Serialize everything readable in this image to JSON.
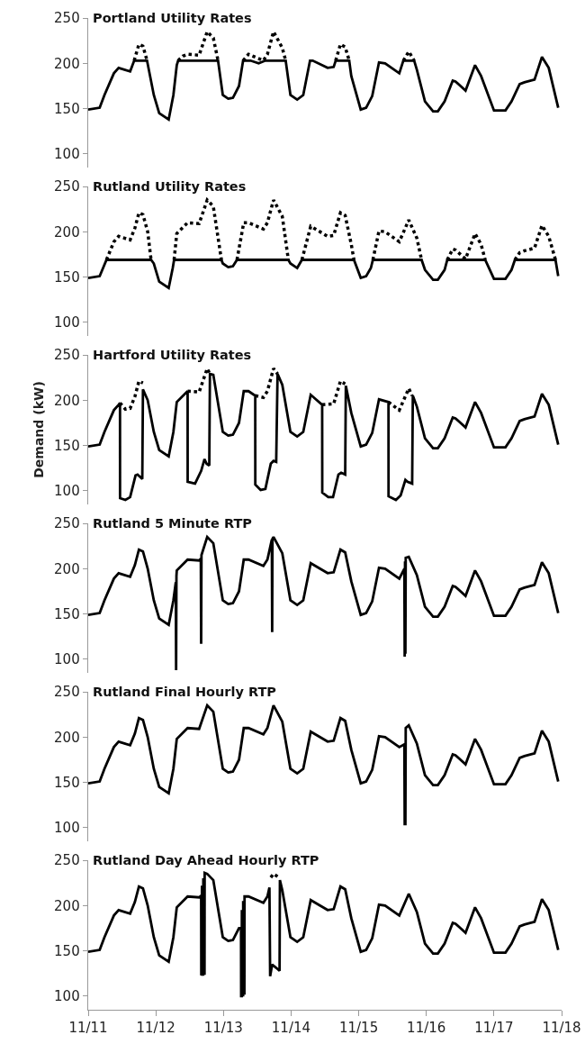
{
  "chart_data": [
    {
      "type": "line",
      "title": "Portland Utility Rates",
      "xlim": [
        "--11-11",
        "--11-18"
      ],
      "ylim": [
        85,
        250
      ],
      "yticks": [
        100,
        150,
        200,
        250
      ],
      "xticks": [
        {
          "value": "--11-11",
          "label": "11/11"
        },
        {
          "value": "--11-12",
          "label": "11/12"
        },
        {
          "value": "--11-13",
          "label": "11/13"
        },
        {
          "value": "--11-14",
          "label": "11/14"
        },
        {
          "value": "--11-15",
          "label": "11/15"
        },
        {
          "value": "--11-16",
          "label": "11/16"
        },
        {
          "value": "--11-17",
          "label": "11/17"
        },
        {
          "value": "--11-18",
          "label": "11/18"
        }
      ],
      "tick_labels": "y",
      "series": [
        {
          "color": "#000000",
          "line_style": "dotted",
          "x": [
            "--11-11T16:19",
            "--11-11T18:00",
            "--11-11T19:26",
            "--11-11T20:53",
            "--11-12T02:24",
            "--11-12T07:55",
            "--11-12T09:36",
            "--11-12T11:17",
            "--11-12T15:22",
            "--11-12T18:14",
            "--11-12T20:24",
            "--11-12T22:05",
            "--11-13T02:24",
            "--11-13T06:58",
            "--11-13T08:53",
            "--11-13T14:10",
            "--11-13T15:36",
            "--11-13T17:46",
            "--11-13T20:53",
            "--11-13T22:05",
            "--11-14T04:48",
            "--11-14T15:50",
            "--11-14T17:31",
            "--11-14T19:12",
            "--11-14T20:38",
            "--11-15T12:00",
            "--11-15T15:50",
            "--11-15T17:46",
            "--11-15T19:41"
          ],
          "values": [
            203,
            221,
            219,
            203,
            null,
            203,
            208,
            210,
            209,
            235,
            228,
            203,
            null,
            203,
            210,
            203,
            210,
            235,
            217,
            203,
            null,
            203,
            221,
            218,
            203,
            null,
            203,
            213,
            203
          ]
        },
        {
          "color": "#000000",
          "line_style": "solid",
          "x": [
            "--11-11T00:00",
            "--11-11T04:05",
            "--11-11T05:46",
            "--11-11T09:07",
            "--11-11T10:48",
            "--11-11T14:53",
            "--11-11T16:19",
            "--11-11T20:53",
            "--11-11T23:17",
            "--11-12T01:12",
            "--11-12T04:34",
            "--11-12T06:14",
            "--11-12T07:26",
            "--11-12T07:55",
            "--11-12T22:05",
            "--11-12T23:46",
            "--11-13T01:41",
            "--11-13T03:22",
            "--11-13T05:31",
            "--11-13T06:58",
            "--11-13T09:36",
            "--11-13T12:29",
            "--11-13T14:53",
            "--11-13T22:05",
            "--11-13T23:46",
            "--11-14T02:10",
            "--11-14T04:19",
            "--11-14T06:43",
            "--11-14T07:41",
            "--11-14T12:58",
            "--11-14T15:07",
            "--11-14T15:50",
            "--11-14T20:38",
            "--11-14T21:22",
            "--11-15T00:43",
            "--11-15T02:38",
            "--11-15T04:48",
            "--11-15T07:12",
            "--11-15T09:22",
            "--11-15T14:24",
            "--11-15T15:50",
            "--11-15T19:41",
            "--11-15T20:38",
            "--11-15T23:31",
            "--11-16T02:24",
            "--11-16T04:05",
            "--11-16T06:29",
            "--11-16T09:22",
            "--11-16T10:19",
            "--11-16T13:55",
            "--11-16T17:17",
            "--11-16T19:26",
            "--11-17T00:00",
            "--11-17T04:05",
            "--11-17T06:14",
            "--11-17T09:07",
            "--11-17T10:48",
            "--11-17T14:24",
            "--11-17T17:02",
            "--11-17T19:26",
            "--11-17T22:48"
          ],
          "values": [
            149,
            151,
            165,
            189,
            195,
            191,
            203,
            203,
            165,
            145,
            138,
            165,
            198,
            203,
            203,
            165,
            161,
            162,
            175,
            203,
            203,
            200,
            203,
            203,
            165,
            160,
            165,
            203,
            203,
            195,
            196,
            203,
            203,
            186,
            149,
            151,
            164,
            201,
            200,
            189,
            203,
            203,
            193,
            158,
            147,
            147,
            158,
            181,
            180,
            170,
            198,
            186,
            148,
            148,
            158,
            177,
            179,
            182,
            207,
            195,
            151
          ]
        }
      ]
    },
    {
      "type": "line",
      "title": "Rutland Utility Rates",
      "xlim": [
        "--11-11",
        "--11-18"
      ],
      "ylim": [
        85,
        250
      ],
      "yticks": [
        100,
        150,
        200,
        250
      ],
      "xticks": [
        {
          "value": "--11-11",
          "label": "11/11"
        },
        {
          "value": "--11-12",
          "label": "11/12"
        },
        {
          "value": "--11-13",
          "label": "11/13"
        },
        {
          "value": "--11-14",
          "label": "11/14"
        },
        {
          "value": "--11-15",
          "label": "11/15"
        },
        {
          "value": "--11-16",
          "label": "11/16"
        },
        {
          "value": "--11-17",
          "label": "11/17"
        },
        {
          "value": "--11-18",
          "label": "11/18"
        }
      ],
      "tick_labels": "y",
      "series": [
        {
          "color": "#000000",
          "line_style": "dotted",
          "x": [
            "--11-11T06:29",
            "--11-11T09:07",
            "--11-11T10:48",
            "--11-11T14:53",
            "--11-11T16:34",
            "--11-11T18:00",
            "--11-11T19:26",
            "--11-11T21:07",
            "--11-11T22:19",
            "--11-12T02:24",
            "--11-12T06:29",
            "--11-12T07:26",
            "--11-12T11:17",
            "--11-12T15:22",
            "--11-12T18:14",
            "--11-12T20:24",
            "--11-12T23:17",
            "--11-13T02:24",
            "--11-13T04:48",
            "--11-13T07:12",
            "--11-13T08:53",
            "--11-13T14:10",
            "--11-13T15:36",
            "--11-13T17:46",
            "--11-13T20:53",
            "--11-13T23:02",
            "--11-14T02:24",
            "--11-14T03:50",
            "--11-14T06:58",
            "--11-14T12:58",
            "--11-14T15:07",
            "--11-14T17:31",
            "--11-14T19:12",
            "--11-14T21:22",
            "--11-14T22:19",
            "--11-15T02:24",
            "--11-15T05:02",
            "--11-15T07:12",
            "--11-15T09:22",
            "--11-15T14:24",
            "--11-15T17:46",
            "--11-15T20:38",
            "--11-15T22:19",
            "--11-16T02:24",
            "--11-16T07:26",
            "--11-16T09:22",
            "--11-16T10:19",
            "--11-16T13:55",
            "--11-16T17:17",
            "--11-16T19:26",
            "--11-16T20:53",
            "--11-17T02:24",
            "--11-17T07:26",
            "--11-17T09:07",
            "--11-17T10:48",
            "--11-17T14:24",
            "--11-17T17:02",
            "--11-17T19:26",
            "--11-17T21:50"
          ],
          "values": [
            169,
            189,
            195,
            191,
            204,
            221,
            219,
            200,
            169,
            null,
            169,
            198,
            210,
            209,
            235,
            228,
            169,
            null,
            169,
            210,
            210,
            203,
            210,
            235,
            217,
            169,
            null,
            169,
            206,
            195,
            196,
            221,
            218,
            186,
            169,
            null,
            169,
            201,
            200,
            189,
            213,
            193,
            169,
            null,
            169,
            181,
            180,
            170,
            198,
            186,
            169,
            null,
            169,
            177,
            179,
            182,
            207,
            195,
            169
          ]
        },
        {
          "color": "#000000",
          "line_style": "solid",
          "x": [
            "--11-11T00:00",
            "--11-11T04:05",
            "--11-11T05:17",
            "--11-11T06:29",
            "--11-11T22:19",
            "--11-11T23:17",
            "--11-12T01:12",
            "--11-12T04:34",
            "--11-12T06:00",
            "--11-12T06:29",
            "--11-12T23:17",
            "--11-12T23:46",
            "--11-13T01:41",
            "--11-13T03:22",
            "--11-13T04:48",
            "--11-13T23:02",
            "--11-13T23:46",
            "--11-14T02:10",
            "--11-14T03:50",
            "--11-14T22:19",
            "--11-15T00:43",
            "--11-15T02:38",
            "--11-15T04:19",
            "--11-15T05:02",
            "--11-15T22:19",
            "--11-15T23:31",
            "--11-16T02:24",
            "--11-16T04:05",
            "--11-16T06:29",
            "--11-16T07:26",
            "--11-16T20:53",
            "--11-17T00:00",
            "--11-17T04:05",
            "--11-17T06:14",
            "--11-17T07:26",
            "--11-17T21:50",
            "--11-17T22:48"
          ],
          "values": [
            149,
            151,
            160,
            169,
            169,
            165,
            145,
            138,
            160,
            169,
            169,
            165,
            161,
            162,
            169,
            169,
            165,
            160,
            169,
            169,
            149,
            151,
            160,
            169,
            169,
            158,
            147,
            147,
            158,
            169,
            169,
            148,
            148,
            158,
            169,
            169,
            151
          ]
        }
      ]
    },
    {
      "type": "line",
      "title": "Hartford Utility Rates",
      "ylabel": "Demand (kW)",
      "xlim": [
        "--11-11",
        "--11-18"
      ],
      "ylim": [
        85,
        250
      ],
      "yticks": [
        100,
        150,
        200,
        250
      ],
      "xticks": [
        {
          "value": "--11-11",
          "label": "11/11"
        },
        {
          "value": "--11-12",
          "label": "11/12"
        },
        {
          "value": "--11-13",
          "label": "11/13"
        },
        {
          "value": "--11-14",
          "label": "11/14"
        },
        {
          "value": "--11-15",
          "label": "11/15"
        },
        {
          "value": "--11-16",
          "label": "11/16"
        },
        {
          "value": "--11-17",
          "label": "11/17"
        },
        {
          "value": "--11-18",
          "label": "11/18"
        }
      ],
      "tick_labels": "y",
      "series": [
        {
          "color": "#000000",
          "line_style": "dotted",
          "x": [
            "--11-11T11:17",
            "--11-11T13:12",
            "--11-11T14:53",
            "--11-11T16:34",
            "--11-11T18:00",
            "--11-11T19:26",
            "--11-12T02:24",
            "--11-12T11:17",
            "--11-12T15:22",
            "--11-12T18:14",
            "--11-12T19:12",
            "--11-13T02:24",
            "--11-13T11:17",
            "--11-13T14:10",
            "--11-13T15:36",
            "--11-13T17:46",
            "--11-13T19:12",
            "--11-14T02:24",
            "--11-14T11:02",
            "--11-14T15:07",
            "--11-14T17:31",
            "--11-14T19:12",
            "--11-15T02:24",
            "--11-15T10:34",
            "--11-15T14:24",
            "--11-15T17:46",
            "--11-15T18:58"
          ],
          "values": [
            197,
            190,
            191,
            204,
            221,
            219,
            null,
            210,
            209,
            235,
            229,
            null,
            205,
            203,
            210,
            235,
            229,
            null,
            195,
            196,
            221,
            218,
            null,
            198,
            189,
            213,
            205
          ]
        },
        {
          "color": "#000000",
          "line_style": "solid",
          "x": [
            "--11-11T00:00",
            "--11-11T04:05",
            "--11-11T05:46",
            "--11-11T09:07",
            "--11-11T10:48",
            "--11-11T11:17",
            "--11-11T11:18",
            "--11-11T13:12",
            "--11-11T14:53",
            "--11-11T16:48",
            "--11-11T17:31",
            "--11-11T19:12",
            "--11-11T19:26",
            "--11-11T21:07",
            "--11-11T23:17",
            "--11-12T01:12",
            "--11-12T04:34",
            "--11-12T06:14",
            "--11-12T07:26",
            "--11-12T11:17",
            "--11-12T11:18",
            "--11-12T13:55",
            "--11-12T16:05",
            "--11-12T17:17",
            "--11-12T18:00",
            "--11-12T18:58",
            "--11-12T19:12",
            "--11-12T20:24",
            "--11-12T23:46",
            "--11-13T01:41",
            "--11-13T03:22",
            "--11-13T05:31",
            "--11-13T07:12",
            "--11-13T08:53",
            "--11-13T11:17",
            "--11-13T11:18",
            "--11-13T13:12",
            "--11-13T14:53",
            "--11-13T16:48",
            "--11-13T17:46",
            "--11-13T18:43",
            "--11-13T19:12",
            "--11-13T20:53",
            "--11-13T23:46",
            "--11-14T02:10",
            "--11-14T04:19",
            "--11-14T06:58",
            "--11-14T11:02",
            "--11-14T11:04",
            "--11-14T13:12",
            "--11-14T14:53",
            "--11-14T16:48",
            "--11-14T17:46",
            "--11-14T19:12",
            "--11-14T19:26",
            "--11-14T21:22",
            "--11-15T00:43",
            "--11-15T02:38",
            "--11-15T04:48",
            "--11-15T07:12",
            "--11-15T10:34",
            "--11-15T10:35",
            "--11-15T13:12",
            "--11-15T14:53",
            "--11-15T16:34",
            "--11-15T17:17",
            "--11-15T18:58",
            "--11-15T19:12",
            "--11-15T20:38",
            "--11-15T23:31",
            "--11-16T02:24",
            "--11-16T04:05",
            "--11-16T06:29",
            "--11-16T09:22",
            "--11-16T10:19",
            "--11-16T13:55",
            "--11-16T17:17",
            "--11-16T19:26",
            "--11-17T00:00",
            "--11-17T04:05",
            "--11-17T06:14",
            "--11-17T09:07",
            "--11-17T10:48",
            "--11-17T14:24",
            "--11-17T17:02",
            "--11-17T19:26",
            "--11-17T22:48"
          ],
          "values": [
            149,
            151,
            165,
            189,
            195,
            197,
            92,
            90,
            93,
            117,
            118,
            113,
            212,
            200,
            165,
            145,
            138,
            165,
            198,
            210,
            110,
            108,
            122,
            135,
            130,
            128,
            229,
            228,
            165,
            161,
            162,
            175,
            210,
            210,
            205,
            107,
            101,
            102,
            130,
            133,
            132,
            229,
            217,
            165,
            160,
            165,
            206,
            195,
            98,
            93,
            93,
            118,
            120,
            118,
            216,
            186,
            149,
            151,
            164,
            201,
            198,
            94,
            90,
            95,
            112,
            110,
            108,
            205,
            193,
            158,
            147,
            147,
            158,
            181,
            180,
            170,
            198,
            186,
            148,
            148,
            158,
            177,
            179,
            182,
            207,
            195,
            151
          ]
        }
      ]
    },
    {
      "type": "line",
      "title": "Rutland 5 Minute RTP",
      "xlim": [
        "--11-11",
        "--11-18"
      ],
      "ylim": [
        85,
        250
      ],
      "yticks": [
        100,
        150,
        200,
        250
      ],
      "xticks": [
        {
          "value": "--11-11",
          "label": "11/11"
        },
        {
          "value": "--11-12",
          "label": "11/12"
        },
        {
          "value": "--11-13",
          "label": "11/13"
        },
        {
          "value": "--11-14",
          "label": "11/14"
        },
        {
          "value": "--11-15",
          "label": "11/15"
        },
        {
          "value": "--11-16",
          "label": "11/16"
        },
        {
          "value": "--11-17",
          "label": "11/17"
        },
        {
          "value": "--11-18",
          "label": "11/18"
        }
      ],
      "tick_labels": "y",
      "series": [
        {
          "color": "#000000",
          "line_style": "solid",
          "x": [
            "--11-11T00:00",
            "--11-11T04:05",
            "--11-11T05:46",
            "--11-11T09:07",
            "--11-11T10:48",
            "--11-11T14:53",
            "--11-11T16:34",
            "--11-11T18:00",
            "--11-11T19:26",
            "--11-11T21:07",
            "--11-11T23:17",
            "--11-12T01:12",
            "--11-12T04:34",
            "--11-12T06:14",
            "--11-12T07:05",
            "--11-12T07:12",
            "--11-12T07:19",
            "--11-12T07:26",
            "--11-12T11:17",
            "--11-12T15:22",
            "--11-12T15:58",
            "--11-12T16:05",
            "--11-12T16:12",
            "--11-12T18:14",
            "--11-12T20:24",
            "--11-12T23:46",
            "--11-13T01:41",
            "--11-13T03:22",
            "--11-13T05:31",
            "--11-13T07:12",
            "--11-13T08:53",
            "--11-13T14:10",
            "--11-13T15:36",
            "--11-13T17:10",
            "--11-13T17:17",
            "--11-13T17:24",
            "--11-13T17:46",
            "--11-13T20:53",
            "--11-13T23:46",
            "--11-14T02:10",
            "--11-14T04:19",
            "--11-14T06:58",
            "--11-14T12:58",
            "--11-14T15:07",
            "--11-14T17:31",
            "--11-14T19:12",
            "--11-14T21:22",
            "--11-15T00:43",
            "--11-15T02:38",
            "--11-15T04:48",
            "--11-15T07:12",
            "--11-15T09:22",
            "--11-15T14:24",
            "--11-15T16:12",
            "--11-15T16:19",
            "--11-15T16:26",
            "--11-15T16:34",
            "--11-15T16:41",
            "--11-15T17:46",
            "--11-15T20:38",
            "--11-15T23:31",
            "--11-16T02:24",
            "--11-16T04:05",
            "--11-16T06:29",
            "--11-16T09:22",
            "--11-16T10:19",
            "--11-16T13:55",
            "--11-16T17:17",
            "--11-16T19:26",
            "--11-17T00:00",
            "--11-17T04:05",
            "--11-17T06:14",
            "--11-17T09:07",
            "--11-17T10:48",
            "--11-17T14:24",
            "--11-17T17:02",
            "--11-17T19:26",
            "--11-17T22:48"
          ],
          "values": [
            149,
            151,
            165,
            189,
            195,
            191,
            204,
            221,
            219,
            200,
            165,
            145,
            138,
            165,
            185,
            88,
            192,
            198,
            210,
            209,
            211,
            117,
            215,
            235,
            228,
            165,
            161,
            162,
            175,
            210,
            210,
            203,
            210,
            232,
            130,
            233,
            235,
            217,
            165,
            160,
            165,
            206,
            195,
            196,
            221,
            218,
            186,
            149,
            151,
            164,
            201,
            200,
            189,
            200,
            103,
            208,
            106,
            212,
            213,
            193,
            158,
            147,
            147,
            158,
            181,
            180,
            170,
            198,
            186,
            148,
            148,
            158,
            177,
            179,
            182,
            207,
            195,
            151
          ]
        }
      ]
    },
    {
      "type": "line",
      "title": "Rutland Final Hourly RTP",
      "xlim": [
        "--11-11",
        "--11-18"
      ],
      "ylim": [
        85,
        250
      ],
      "yticks": [
        100,
        150,
        200,
        250
      ],
      "xticks": [
        {
          "value": "--11-11",
          "label": "11/11"
        },
        {
          "value": "--11-12",
          "label": "11/12"
        },
        {
          "value": "--11-13",
          "label": "11/13"
        },
        {
          "value": "--11-14",
          "label": "11/14"
        },
        {
          "value": "--11-15",
          "label": "11/15"
        },
        {
          "value": "--11-16",
          "label": "11/16"
        },
        {
          "value": "--11-17",
          "label": "11/17"
        },
        {
          "value": "--11-18",
          "label": "11/18"
        }
      ],
      "tick_labels": "y",
      "series": [
        {
          "color": "#000000",
          "line_style": "solid",
          "x": [
            "--11-11T00:00",
            "--11-11T04:05",
            "--11-11T05:46",
            "--11-11T09:07",
            "--11-11T10:48",
            "--11-11T14:53",
            "--11-11T16:34",
            "--11-11T18:00",
            "--11-11T19:26",
            "--11-11T21:07",
            "--11-11T23:17",
            "--11-12T01:12",
            "--11-12T04:34",
            "--11-12T06:14",
            "--11-12T07:26",
            "--11-12T11:17",
            "--11-12T15:22",
            "--11-12T18:14",
            "--11-12T20:24",
            "--11-12T23:46",
            "--11-13T01:41",
            "--11-13T03:22",
            "--11-13T05:31",
            "--11-13T07:12",
            "--11-13T08:53",
            "--11-13T14:10",
            "--11-13T15:36",
            "--11-13T17:46",
            "--11-13T20:53",
            "--11-13T23:46",
            "--11-14T02:10",
            "--11-14T04:19",
            "--11-14T06:58",
            "--11-14T12:58",
            "--11-14T15:07",
            "--11-14T17:31",
            "--11-14T19:12",
            "--11-14T21:22",
            "--11-15T00:43",
            "--11-15T02:38",
            "--11-15T04:48",
            "--11-15T07:12",
            "--11-15T09:22",
            "--11-15T14:24",
            "--11-15T16:12",
            "--11-15T16:19",
            "--11-15T16:34",
            "--11-15T16:41",
            "--11-15T17:46",
            "--11-15T20:38",
            "--11-15T23:31",
            "--11-16T02:24",
            "--11-16T04:05",
            "--11-16T06:29",
            "--11-16T09:22",
            "--11-16T10:19",
            "--11-16T13:55",
            "--11-16T17:17",
            "--11-16T19:26",
            "--11-17T00:00",
            "--11-17T04:05",
            "--11-17T06:14",
            "--11-17T09:07",
            "--11-17T10:48",
            "--11-17T14:24",
            "--11-17T17:02",
            "--11-17T19:26",
            "--11-17T22:48"
          ],
          "values": [
            149,
            151,
            165,
            189,
            195,
            191,
            204,
            221,
            219,
            200,
            165,
            145,
            138,
            165,
            198,
            210,
            209,
            235,
            228,
            165,
            161,
            162,
            175,
            210,
            210,
            203,
            210,
            235,
            217,
            165,
            160,
            165,
            206,
            195,
            196,
            221,
            218,
            186,
            149,
            151,
            164,
            201,
            200,
            189,
            192,
            104,
            104,
            210,
            213,
            193,
            158,
            147,
            147,
            158,
            181,
            180,
            170,
            198,
            186,
            148,
            148,
            158,
            177,
            179,
            182,
            207,
            195,
            151
          ]
        }
      ]
    },
    {
      "type": "line",
      "title": "Rutland Day Ahead Hourly RTP",
      "xlim": [
        "--11-11",
        "--11-18"
      ],
      "ylim": [
        85,
        250
      ],
      "yticks": [
        100,
        150,
        200,
        250
      ],
      "xticks": [
        {
          "value": "--11-11",
          "label": "11/11"
        },
        {
          "value": "--11-12",
          "label": "11/12"
        },
        {
          "value": "--11-13",
          "label": "11/13"
        },
        {
          "value": "--11-14",
          "label": "11/14"
        },
        {
          "value": "--11-15",
          "label": "11/15"
        },
        {
          "value": "--11-16",
          "label": "11/16"
        },
        {
          "value": "--11-17",
          "label": "11/17"
        },
        {
          "value": "--11-18",
          "label": "11/18"
        }
      ],
      "series": [
        {
          "color": "#000000",
          "line_style": "solid",
          "x": [
            "--11-11T00:00",
            "--11-11T04:05",
            "--11-11T05:46",
            "--11-11T09:07",
            "--11-11T10:48",
            "--11-11T14:53",
            "--11-11T16:34",
            "--11-11T18:00",
            "--11-11T19:26",
            "--11-11T21:07",
            "--11-11T23:17",
            "--11-12T01:12",
            "--11-12T04:34",
            "--11-12T06:14",
            "--11-12T07:26",
            "--11-12T11:17",
            "--11-12T15:22",
            "--11-12T16:05",
            "--11-12T16:08",
            "--11-12T16:19",
            "--11-12T16:22",
            "--11-12T16:34",
            "--11-12T16:48",
            "--11-12T16:51",
            "--11-12T17:02",
            "--11-12T17:17",
            "--11-12T17:20",
            "--11-12T18:14",
            "--11-12T20:24",
            "--11-12T23:46",
            "--11-13T01:41",
            "--11-13T03:22",
            "--11-13T05:31",
            "--11-13T06:14",
            "--11-13T06:17",
            "--11-13T06:29",
            "--11-13T06:32",
            "--11-13T06:43",
            "--11-13T06:58",
            "--11-13T07:00",
            "--11-13T07:12",
            "--11-13T07:26",
            "--11-13T07:29",
            "--11-13T08:53",
            "--11-13T14:10",
            "--11-13T15:36",
            "--11-13T16:19",
            "--11-13T16:34",
            "--11-13T17:17",
            "--11-13T18:00",
            "--11-13T19:12",
            "--11-13T19:55",
            "--11-13T20:02",
            "--11-13T20:53",
            "--11-13T23:46",
            "--11-14T02:10",
            "--11-14T04:19",
            "--11-14T06:58",
            "--11-14T12:58",
            "--11-14T15:07",
            "--11-14T17:31",
            "--11-14T19:12",
            "--11-14T21:22",
            "--11-15T00:43",
            "--11-15T02:38",
            "--11-15T04:48",
            "--11-15T07:12",
            "--11-15T09:22",
            "--11-15T14:24",
            "--11-15T17:46",
            "--11-15T20:38",
            "--11-15T23:31",
            "--11-16T02:24",
            "--11-16T04:05",
            "--11-16T06:29",
            "--11-16T09:22",
            "--11-16T10:19",
            "--11-16T13:55",
            "--11-16T17:17",
            "--11-16T19:26",
            "--11-17T00:00",
            "--11-17T04:05",
            "--11-17T06:14",
            "--11-17T09:07",
            "--11-17T10:48",
            "--11-17T14:24",
            "--11-17T17:02",
            "--11-17T19:26",
            "--11-17T22:48"
          ],
          "values": [
            149,
            151,
            165,
            189,
            195,
            191,
            204,
            221,
            219,
            200,
            165,
            145,
            138,
            165,
            198,
            210,
            209,
            211,
            123,
            124,
            222,
            124,
            124,
            230,
            125,
            125,
            236,
            235,
            228,
            165,
            161,
            162,
            175,
            176,
            100,
            100,
            195,
            101,
            101,
            205,
            103,
            103,
            210,
            210,
            203,
            210,
            220,
            122,
            135,
            133,
            130,
            128,
            228,
            217,
            165,
            160,
            165,
            206,
            195,
            196,
            221,
            218,
            186,
            149,
            151,
            164,
            201,
            200,
            189,
            213,
            193,
            158,
            147,
            147,
            158,
            181,
            180,
            170,
            198,
            186,
            148,
            148,
            158,
            177,
            179,
            182,
            207,
            195,
            151
          ]
        },
        {
          "color": "#000000",
          "line_style": "dotted",
          "x": [
            "--11-13T16:48",
            "--11-13T17:46",
            "--11-13T19:12"
          ],
          "values": [
            231,
            235,
            232
          ]
        }
      ]
    }
  ]
}
